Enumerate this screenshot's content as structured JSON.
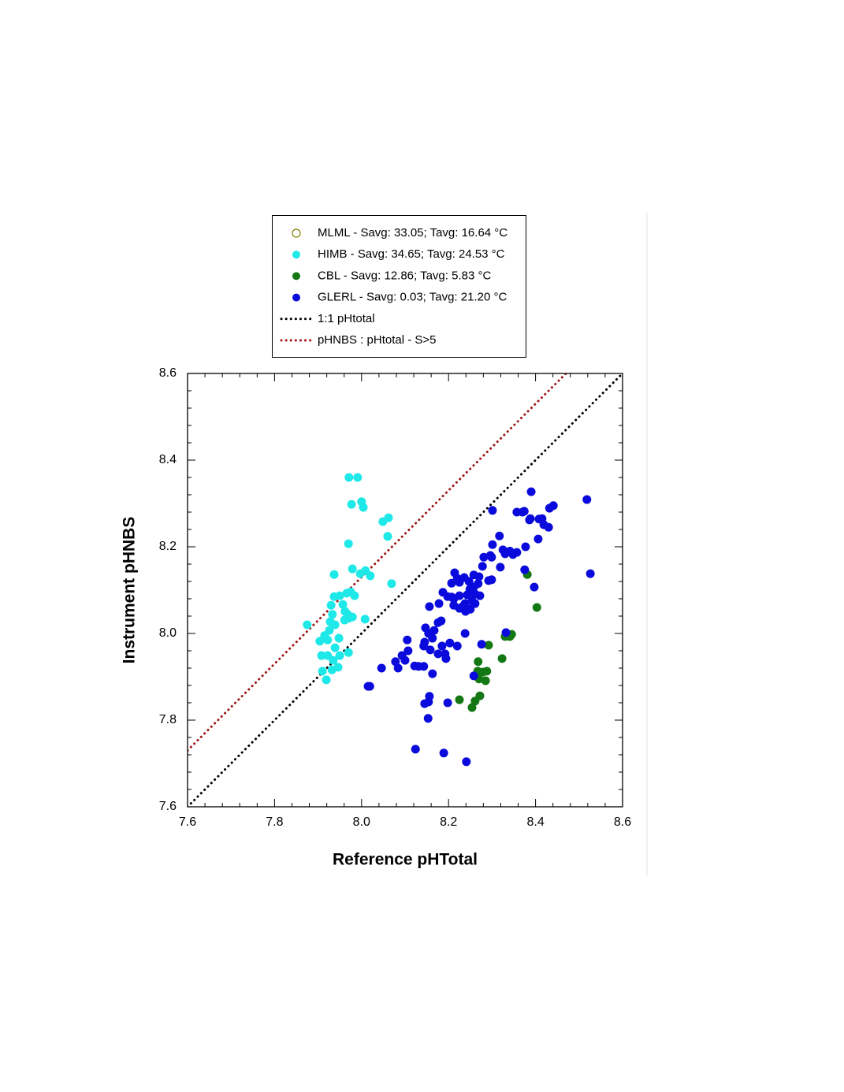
{
  "chart_data": {
    "type": "scatter",
    "xlabel": "Reference pHTotal",
    "ylabel": "Instrument pHNBS",
    "xlim": [
      7.6,
      8.6
    ],
    "ylim": [
      7.6,
      8.6
    ],
    "xticks": [
      7.6,
      7.8,
      {
        "value": 8,
        "label": "8.0"
      },
      8.2,
      8.4,
      8.6
    ],
    "yticks": [
      7.6,
      7.8,
      {
        "value": 8,
        "label": "8.0"
      },
      8.2,
      8.4,
      8.6
    ],
    "minor_ticks_per_major": 5,
    "legend": "top",
    "series": [
      {
        "name": "MLML - Savg: 33.05; Tavg: 16.64 °C",
        "type": "scatter",
        "marker": "open circle",
        "color": "#808000",
        "x": [],
        "values": []
      },
      {
        "name": "HIMB - Savg: 34.65; Tavg: 24.53 °C",
        "type": "scatter",
        "marker": "circle",
        "color": "#1ee8e8",
        "x": [
          7.875,
          7.971,
          7.991,
          7.977,
          8.0,
          8.004,
          8.049,
          8.062,
          8.06,
          7.97,
          7.979,
          7.997,
          8.009,
          8.02,
          8.069,
          7.937,
          7.937,
          7.95,
          7.966,
          7.975,
          7.984,
          7.957,
          7.93,
          7.933,
          7.928,
          7.939,
          7.926,
          7.915,
          7.904,
          7.922,
          7.939,
          7.948,
          7.962,
          7.968,
          7.97,
          7.961,
          7.979,
          8.008,
          7.908,
          7.922,
          7.935,
          7.95,
          7.97,
          7.946,
          7.932,
          7.91,
          7.919
        ],
        "values": [
          8.02,
          8.36,
          8.36,
          8.298,
          8.304,
          8.291,
          8.258,
          8.267,
          8.224,
          8.207,
          8.149,
          8.138,
          8.145,
          8.133,
          8.115,
          8.136,
          8.085,
          8.087,
          8.093,
          8.096,
          8.087,
          8.067,
          8.065,
          8.044,
          8.027,
          8.02,
          8.007,
          7.995,
          7.982,
          7.985,
          7.967,
          7.989,
          8.051,
          8.044,
          8.035,
          8.031,
          8.038,
          8.033,
          7.949,
          7.949,
          7.938,
          7.949,
          7.956,
          7.922,
          7.916,
          7.913,
          7.893
        ]
      },
      {
        "name": "CBL - Savg: 12.86; Tavg: 5.83 °C",
        "type": "scatter",
        "marker": "circle",
        "color": "#137813",
        "x": [
          8.381,
          8.403,
          8.345,
          8.341,
          8.33,
          8.292,
          8.268,
          8.323,
          8.288,
          8.279,
          8.267,
          8.27,
          8.285,
          8.272,
          8.261,
          8.254,
          8.225
        ],
        "values": [
          8.136,
          8.06,
          7.998,
          7.993,
          7.993,
          7.973,
          7.935,
          7.942,
          7.913,
          7.911,
          7.913,
          7.895,
          7.891,
          7.856,
          7.844,
          7.829,
          7.847
        ]
      },
      {
        "name": "GLERL - Savg: 0.03; Tavg: 21.20 °C",
        "type": "scatter",
        "marker": "circle",
        "color": "#0a0adc",
        "x": [
          8.39,
          8.374,
          8.408,
          8.388,
          8.415,
          8.419,
          8.357,
          8.37,
          8.386,
          8.441,
          8.432,
          8.518,
          8.406,
          8.377,
          8.43,
          8.526,
          8.301,
          8.317,
          8.375,
          8.397,
          8.341,
          8.357,
          8.33,
          8.348,
          8.301,
          8.299,
          8.325,
          8.296,
          8.319,
          8.281,
          8.278,
          8.299,
          8.292,
          8.27,
          8.268,
          8.258,
          8.261,
          8.249,
          8.247,
          8.243,
          8.238,
          8.239,
          8.25,
          8.272,
          8.254,
          8.261,
          8.225,
          8.225,
          8.22,
          8.207,
          8.207,
          8.212,
          8.236,
          8.258,
          8.214,
          8.198,
          8.232,
          8.187,
          8.212,
          8.225,
          8.178,
          8.183,
          8.176,
          8.156,
          8.167,
          8.147,
          8.154,
          8.163,
          8.145,
          8.158,
          8.143,
          8.203,
          8.22,
          8.238,
          8.276,
          8.185,
          8.192,
          8.176,
          8.105,
          8.107,
          8.1,
          8.093,
          8.078,
          8.084,
          8.122,
          8.131,
          8.143,
          8.163,
          8.046,
          8.194,
          8.156,
          8.154,
          8.145,
          8.153,
          8.198,
          8.258,
          8.124,
          8.189,
          8.241,
          8.015,
          8.019,
          8.332
        ],
        "values": [
          8.327,
          8.282,
          8.264,
          8.265,
          8.265,
          8.251,
          8.28,
          8.28,
          8.262,
          8.295,
          8.289,
          8.309,
          8.218,
          8.2,
          8.245,
          8.138,
          8.284,
          8.225,
          8.147,
          8.107,
          8.19,
          8.187,
          8.184,
          8.182,
          8.205,
          8.176,
          8.193,
          8.18,
          8.153,
          8.176,
          8.155,
          8.124,
          8.122,
          8.131,
          8.115,
          8.107,
          8.091,
          8.102,
          8.12,
          8.089,
          8.069,
          8.051,
          8.056,
          8.087,
          8.075,
          8.069,
          8.118,
          8.087,
          8.127,
          8.116,
          8.084,
          8.065,
          8.129,
          8.135,
          8.14,
          8.085,
          8.062,
          8.095,
          8.08,
          8.058,
          8.069,
          8.029,
          8.025,
          8.062,
          8.007,
          8.013,
          8.0,
          7.989,
          7.98,
          7.962,
          7.971,
          7.978,
          7.971,
          8.0,
          7.975,
          7.971,
          7.953,
          7.953,
          7.985,
          7.96,
          7.938,
          7.949,
          7.935,
          7.92,
          7.925,
          7.924,
          7.924,
          7.907,
          7.92,
          7.942,
          7.855,
          7.842,
          7.838,
          7.804,
          7.84,
          7.902,
          7.733,
          7.724,
          7.704,
          7.878,
          7.878,
          8.002
        ]
      },
      {
        "name": "1:1 pHtotal",
        "type": "line",
        "style": "dotted",
        "color": "#000000",
        "x": [
          7.6,
          8.6
        ],
        "values": [
          7.6,
          8.6
        ]
      },
      {
        "name": "pHNBS : pHtotal - S>5",
        "type": "line",
        "style": "dotted",
        "color": "#a01414",
        "x": [
          7.6,
          8.47
        ],
        "values": [
          7.73,
          8.6
        ]
      }
    ]
  }
}
